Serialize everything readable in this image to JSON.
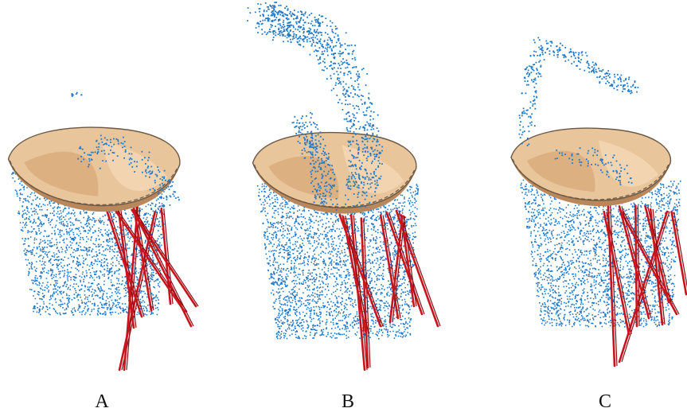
{
  "panels": [
    {
      "label": "A"
    },
    {
      "label": "B"
    },
    {
      "label": "C"
    }
  ],
  "colors": {
    "particles": "#1f78c8",
    "valve_surface": "#e9c59b",
    "valve_shadow": "#b9875a",
    "valve_rim": "#6b5846",
    "chordae": "#c8141c"
  }
}
